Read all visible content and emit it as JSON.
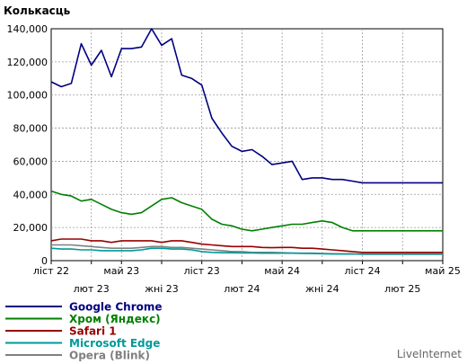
{
  "chart_data": {
    "type": "line",
    "ylabel": "Колькасць",
    "ylim": [
      0,
      140000
    ],
    "yticks": [
      {
        "value": 0,
        "label": "0"
      },
      {
        "value": 20000,
        "label": "20,000"
      },
      {
        "value": 40000,
        "label": "40,000"
      },
      {
        "value": 60000,
        "label": "60,000"
      },
      {
        "value": 80000,
        "label": "80,000"
      },
      {
        "value": 100000,
        "label": "100,000"
      },
      {
        "value": 120000,
        "label": "120,000"
      },
      {
        "value": 140000,
        "label": "140,000"
      }
    ],
    "x_count": 40,
    "xticks": [
      {
        "index": 0,
        "label": "ліст 22",
        "row": 1
      },
      {
        "index": 4,
        "label": "лют 23",
        "row": 2
      },
      {
        "index": 7,
        "label": "май 23",
        "row": 1
      },
      {
        "index": 11,
        "label": "жні 23",
        "row": 2
      },
      {
        "index": 15,
        "label": "ліст 23",
        "row": 1
      },
      {
        "index": 19,
        "label": "лют 24",
        "row": 2
      },
      {
        "index": 23,
        "label": "май 24",
        "row": 1
      },
      {
        "index": 27,
        "label": "жні 24",
        "row": 2
      },
      {
        "index": 31,
        "label": "ліст 24",
        "row": 1
      },
      {
        "index": 35,
        "label": "лют 25",
        "row": 2
      },
      {
        "index": 39,
        "label": "май 25",
        "row": 1
      }
    ],
    "grid": true,
    "legend_position": "bottom-left",
    "series": [
      {
        "name": "Google Chrome",
        "color": "#000080",
        "values": [
          108000,
          105000,
          107000,
          131000,
          118000,
          127000,
          111000,
          128000,
          128000,
          129000,
          140000,
          130000,
          134000,
          112000,
          110000,
          106000,
          86000,
          77000,
          69000,
          66000,
          67000,
          63000,
          58000,
          59000,
          60000,
          49000,
          50000,
          50000,
          49000,
          49000,
          48000,
          47000,
          47000,
          47000,
          47000,
          47000,
          47000,
          47000,
          47000,
          47000
        ]
      },
      {
        "name": "Хром (Яндекс)",
        "color": "#008000",
        "values": [
          42000,
          40000,
          39000,
          36000,
          37000,
          34000,
          31000,
          29000,
          28000,
          29000,
          33000,
          37000,
          38000,
          35000,
          33000,
          31000,
          25000,
          22000,
          21000,
          19000,
          18000,
          19000,
          20000,
          21000,
          22000,
          22000,
          23000,
          24000,
          23000,
          20000,
          18000,
          18000,
          18000,
          18000,
          18000,
          18000,
          18000,
          18000,
          18000,
          18000
        ]
      },
      {
        "name": "Safari 1",
        "color": "#990000",
        "values": [
          12000,
          13000,
          13000,
          13000,
          12000,
          12000,
          11000,
          12000,
          12000,
          12000,
          12000,
          11000,
          12000,
          12000,
          11000,
          10000,
          9500,
          9000,
          8500,
          8500,
          8500,
          8000,
          7800,
          8000,
          8000,
          7500,
          7500,
          7000,
          6500,
          6000,
          5500,
          5000,
          5000,
          5000,
          5000,
          5000,
          5000,
          5000,
          5000,
          5000
        ]
      },
      {
        "name": "Microsoft Edge",
        "color": "#009999",
        "values": [
          7500,
          7000,
          7000,
          6500,
          6500,
          6000,
          6000,
          6000,
          6000,
          6500,
          7500,
          7500,
          7000,
          7000,
          6500,
          5500,
          5000,
          4800,
          4800,
          4600,
          4600,
          4500,
          4500,
          4500,
          4500,
          4400,
          4300,
          4200,
          4000,
          4000,
          4000,
          4000,
          4000,
          4000,
          4000,
          4000,
          4000,
          4000,
          4000,
          4000
        ]
      },
      {
        "name": "Opera (Blink)",
        "color": "#808080",
        "values": [
          9500,
          9500,
          9500,
          9000,
          8500,
          8000,
          7500,
          7500,
          7500,
          8000,
          8500,
          8500,
          8000,
          8000,
          7500,
          7000,
          6500,
          6000,
          5500,
          5500,
          5000,
          5000,
          5000,
          4800,
          4600,
          4500,
          4500,
          4300,
          4200,
          4000,
          4000,
          3800,
          3800,
          3800,
          3800,
          3800,
          3800,
          3800,
          3800,
          3800
        ]
      }
    ]
  },
  "credit": "LiveInternet"
}
